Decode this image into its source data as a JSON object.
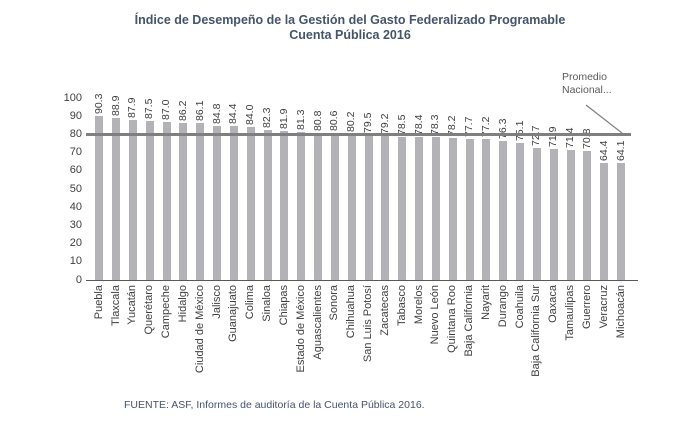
{
  "title": {
    "line1": "Índice de Desempeño de la Gestión del Gasto Federalizado Programable",
    "line2": "Cuenta Pública 2016"
  },
  "annotation": {
    "text": "Promedio\nNacional..."
  },
  "footer": {
    "source": "FUENTE: ASF, Informes de auditoría de la Cuenta Pública 2016."
  },
  "colors": {
    "bar": "#b3b3b7",
    "reference_line": "#7f7f7f",
    "title_text": "#44546a",
    "label_text": "#404040",
    "annotation_text": "#595959"
  },
  "chart_data": {
    "type": "bar",
    "title": "Índice de Desempeño de la Gestión del Gasto Federalizado Programable Cuenta Pública 2016",
    "xlabel": "",
    "ylabel": "",
    "ylim": [
      0,
      100
    ],
    "yticks": [
      0,
      10,
      20,
      30,
      40,
      50,
      60,
      70,
      80,
      90,
      100
    ],
    "grid": false,
    "legend": false,
    "value_labels_rotated": true,
    "categories": [
      "Puebla",
      "Tlaxcala",
      "Yucatán",
      "Querétaro",
      "Campeche",
      "Hidalgo",
      "Ciudad de México",
      "Jalisco",
      "Guanajuato",
      "Colima",
      "Sinaloa",
      "Chiapas",
      "Estado de México",
      "Aguascalientes",
      "Sonora",
      "Chihuahua",
      "San Luis Potosí",
      "Zacatecas",
      "Tabasco",
      "Morelos",
      "Nuevo León",
      "Quintana Roo",
      "Baja California",
      "Nayarit",
      "Durango",
      "Coahuila",
      "Baja California Sur",
      "Oaxaca",
      "Tamaulipas",
      "Guerrero",
      "Veracruz",
      "Michoacán"
    ],
    "values": [
      90.3,
      88.9,
      87.9,
      87.5,
      87.0,
      86.2,
      86.1,
      84.8,
      84.4,
      84.0,
      82.3,
      81.9,
      81.3,
      80.8,
      80.6,
      80.2,
      79.5,
      79.2,
      78.5,
      78.4,
      78.3,
      78.2,
      77.7,
      77.2,
      76.3,
      75.1,
      72.7,
      71.9,
      71.4,
      70.8,
      64.4,
      64.1
    ],
    "reference_line": {
      "label": "Promedio Nacional...",
      "value": 80
    }
  }
}
